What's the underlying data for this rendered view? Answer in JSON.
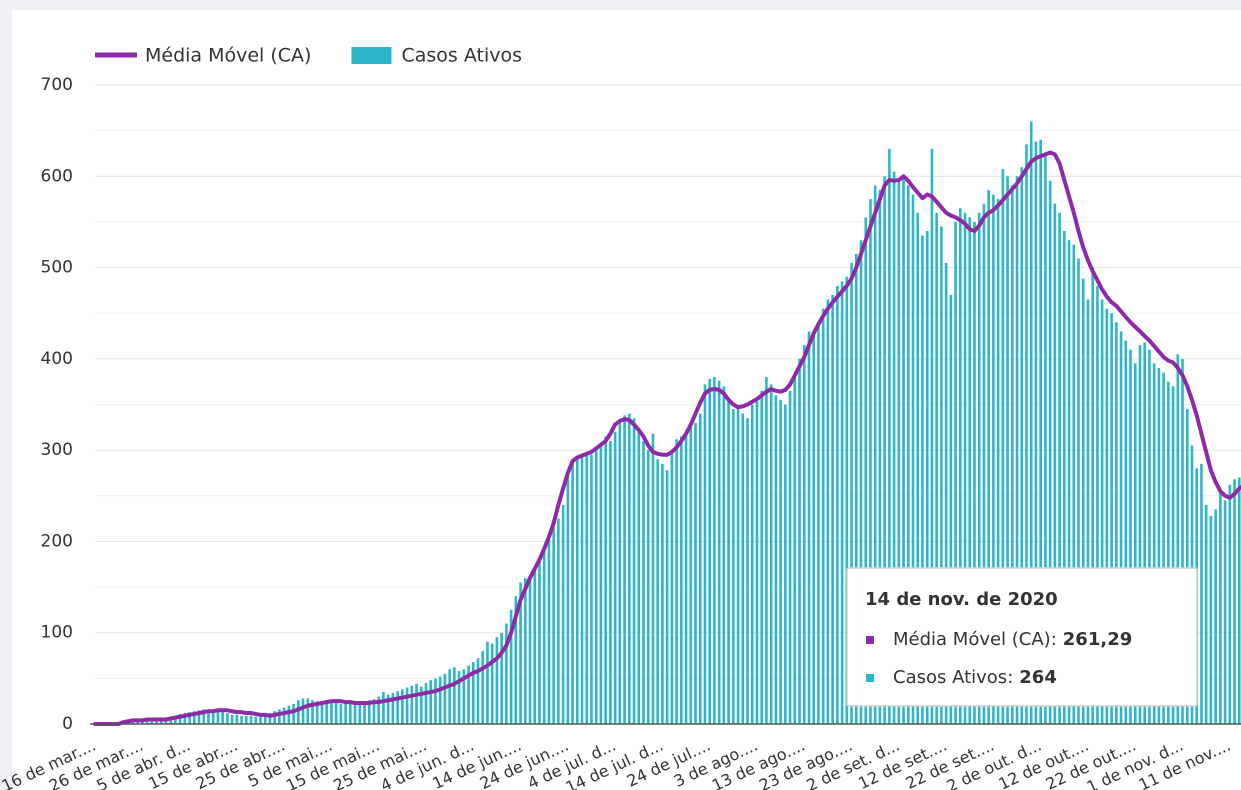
{
  "chart_data": {
    "type": "combo",
    "categories": [
      "16 de mar....",
      null,
      null,
      null,
      null,
      null,
      null,
      null,
      null,
      null,
      "26 de mar....",
      null,
      null,
      null,
      null,
      null,
      null,
      null,
      null,
      null,
      "5 de abr. d...",
      null,
      null,
      null,
      null,
      null,
      null,
      null,
      null,
      null,
      "15 de abr....",
      null,
      null,
      null,
      null,
      null,
      null,
      null,
      null,
      null,
      "25 de abr....",
      null,
      null,
      null,
      null,
      null,
      null,
      null,
      null,
      null,
      "5 de mai....",
      null,
      null,
      null,
      null,
      null,
      null,
      null,
      null,
      null,
      "15 de mai....",
      null,
      null,
      null,
      null,
      null,
      null,
      null,
      null,
      null,
      "25 de mai....",
      null,
      null,
      null,
      null,
      null,
      null,
      null,
      null,
      null,
      "4 de jun. d...",
      null,
      null,
      null,
      null,
      null,
      null,
      null,
      null,
      null,
      "14 de jun....",
      null,
      null,
      null,
      null,
      null,
      null,
      null,
      null,
      null,
      "24 de jun....",
      null,
      null,
      null,
      null,
      null,
      null,
      null,
      null,
      null,
      "4 de jul. d...",
      null,
      null,
      null,
      null,
      null,
      null,
      null,
      null,
      null,
      "14 de jul. d...",
      null,
      null,
      null,
      null,
      null,
      null,
      null,
      null,
      null,
      "24 de jul....",
      null,
      null,
      null,
      null,
      null,
      null,
      null,
      null,
      null,
      "3 de ago....",
      null,
      null,
      null,
      null,
      null,
      null,
      null,
      null,
      null,
      "13 de ago....",
      null,
      null,
      null,
      null,
      null,
      null,
      null,
      null,
      null,
      "23 de ago....",
      null,
      null,
      null,
      null,
      null,
      null,
      null,
      null,
      null,
      "2 de set. d...",
      null,
      null,
      null,
      null,
      null,
      null,
      null,
      null,
      null,
      "12 de set....",
      null,
      null,
      null,
      null,
      null,
      null,
      null,
      null,
      null,
      "22 de set....",
      null,
      null,
      null,
      null,
      null,
      null,
      null,
      null,
      null,
      "2 de out. d...",
      null,
      null,
      null,
      null,
      null,
      null,
      null,
      null,
      null,
      "12 de out....",
      null,
      null,
      null,
      null,
      null,
      null,
      null,
      null,
      null,
      "22 de out....",
      null,
      null,
      null,
      null,
      null,
      null,
      null,
      null,
      null,
      "1 de nov. d...",
      null,
      null,
      null,
      null,
      null,
      null,
      null,
      null,
      null,
      "11 de nov....",
      null,
      null,
      null
    ],
    "series": [
      {
        "name": "Média Móvel (CA)",
        "type": "line",
        "color": "#8e2aa8",
        "values": [
          0,
          0,
          0,
          0,
          0,
          0,
          2,
          3,
          4,
          4,
          4,
          5,
          5,
          5,
          5,
          5,
          6,
          7,
          8,
          9,
          10,
          11,
          12,
          13,
          14,
          14,
          15,
          15,
          15,
          14,
          13,
          13,
          12,
          12,
          11,
          10,
          10,
          9,
          10,
          11,
          12,
          13,
          14,
          16,
          18,
          20,
          21,
          22,
          23,
          24,
          25,
          25,
          25,
          24,
          24,
          23,
          23,
          23,
          23,
          24,
          24,
          25,
          26,
          27,
          28,
          29,
          30,
          31,
          32,
          33,
          34,
          35,
          36,
          38,
          40,
          42,
          44,
          47,
          50,
          53,
          56,
          58,
          61,
          64,
          68,
          72,
          78,
          86,
          100,
          118,
          136,
          148,
          160,
          170,
          180,
          192,
          205,
          220,
          240,
          258,
          275,
          288,
          292,
          294,
          296,
          298,
          302,
          306,
          310,
          318,
          328,
          332,
          334,
          333,
          328,
          322,
          315,
          305,
          298,
          296,
          295,
          295,
          298,
          303,
          310,
          318,
          328,
          340,
          352,
          362,
          366,
          367,
          366,
          362,
          355,
          350,
          347,
          348,
          350,
          353,
          356,
          360,
          364,
          367,
          365,
          364,
          366,
          372,
          382,
          392,
          402,
          415,
          428,
          438,
          447,
          455,
          462,
          468,
          474,
          480,
          488,
          500,
          515,
          530,
          545,
          560,
          575,
          590,
          596,
          595,
          596,
          600,
          595,
          588,
          582,
          576,
          580,
          578,
          572,
          566,
          560,
          557,
          555,
          552,
          548,
          542,
          540,
          546,
          555,
          560,
          563,
          568,
          574,
          580,
          586,
          592,
          600,
          608,
          616,
          620,
          622,
          624,
          626,
          624,
          614,
          596,
          578,
          560,
          540,
          522,
          508,
          496,
          486,
          476,
          468,
          462,
          458,
          452,
          446,
          440,
          435,
          430,
          425,
          420,
          414,
          408,
          402,
          398,
          396,
          390,
          382,
          370,
          355,
          338,
          318,
          298,
          278,
          265,
          255,
          250,
          248,
          252,
          258,
          261.29
        ]
      },
      {
        "name": "Casos Ativos",
        "type": "bar",
        "color": "#2bb7c8",
        "values": [
          0,
          0,
          0,
          0,
          0,
          0,
          3,
          4,
          4,
          5,
          5,
          5,
          6,
          5,
          6,
          6,
          8,
          9,
          11,
          12,
          13,
          14,
          15,
          16,
          15,
          14,
          14,
          13,
          12,
          10,
          10,
          9,
          9,
          9,
          8,
          9,
          11,
          12,
          14,
          16,
          18,
          20,
          22,
          26,
          28,
          28,
          26,
          25,
          24,
          23,
          24,
          23,
          22,
          23,
          24,
          22,
          24,
          25,
          26,
          27,
          30,
          35,
          32,
          34,
          36,
          38,
          40,
          42,
          44,
          41,
          45,
          48,
          50,
          52,
          55,
          60,
          62,
          58,
          60,
          64,
          68,
          72,
          80,
          90,
          88,
          95,
          100,
          110,
          125,
          140,
          155,
          160,
          158,
          170,
          180,
          192,
          205,
          215,
          225,
          240,
          278,
          285,
          290,
          292,
          298,
          295,
          302,
          306,
          315,
          310,
          320,
          330,
          338,
          340,
          335,
          320,
          310,
          300,
          318,
          290,
          285,
          278,
          300,
          312,
          315,
          320,
          325,
          330,
          340,
          372,
          378,
          380,
          376,
          370,
          355,
          345,
          348,
          340,
          335,
          350,
          356,
          365,
          380,
          372,
          360,
          355,
          350,
          365,
          380,
          400,
          415,
          430,
          428,
          440,
          455,
          465,
          470,
          480,
          485,
          490,
          505,
          515,
          530,
          555,
          575,
          590,
          585,
          600,
          630,
          605,
          595,
          600,
          590,
          580,
          560,
          535,
          540,
          630,
          560,
          545,
          505,
          470,
          550,
          565,
          560,
          555,
          550,
          560,
          570,
          585,
          580,
          575,
          608,
          600,
          590,
          600,
          610,
          635,
          660,
          638,
          640,
          625,
          595,
          570,
          560,
          540,
          530,
          525,
          510,
          488,
          465,
          500,
          480,
          465,
          455,
          450,
          440,
          430,
          420,
          410,
          395,
          415,
          418,
          410,
          395,
          390,
          385,
          375,
          370,
          405,
          400,
          345,
          305,
          280,
          285,
          240,
          228,
          235,
          255,
          245,
          262,
          268,
          270,
          264
        ]
      }
    ],
    "ylim": [
      0,
      700
    ],
    "yticks": [
      0,
      100,
      200,
      300,
      400,
      500,
      600,
      700
    ],
    "minor_yticks": [
      50,
      150,
      250,
      350,
      450,
      550,
      650
    ],
    "grid": true,
    "legend": "top",
    "tooltip": {
      "date": "14 de nov. de 2020",
      "items": [
        {
          "name": "Média Móvel (CA):",
          "value": "261,29"
        },
        {
          "name": "Casos Ativos:",
          "value": "264"
        }
      ]
    }
  }
}
